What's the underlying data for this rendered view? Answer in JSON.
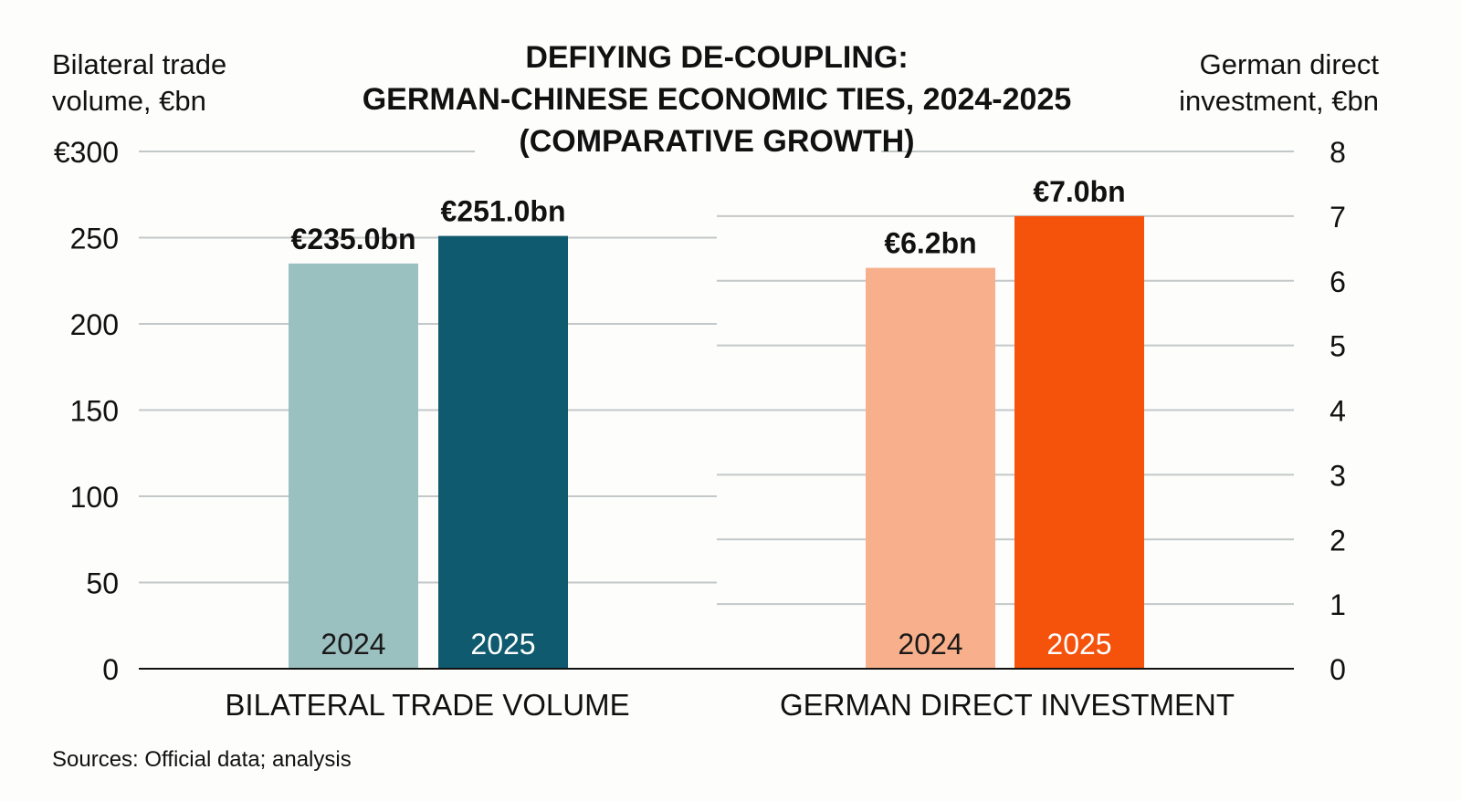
{
  "chart_data": {
    "type": "bar",
    "title_lines": [
      "DEFIYING DE-COUPLING:",
      "GERMAN-CHINESE ECONOMIC TIES, 2024-2025",
      "(COMPARATIVE GROWTH)"
    ],
    "source": "Sources: Official data; analysis",
    "grid": true,
    "panels": [
      {
        "category": "BILATERAL TRADE VOLUME",
        "axis_side": "left",
        "ylabel_lines": [
          "Bilateral trade",
          "volume, €bn"
        ],
        "ylim": [
          0,
          300
        ],
        "ticks": [
          0,
          50,
          100,
          150,
          200,
          250,
          300
        ],
        "tick_labels": [
          "0",
          "50",
          "100",
          "150",
          "200",
          "250",
          "€300"
        ],
        "bars": [
          {
            "year": "2024",
            "value": 235.0,
            "label": "€235.0bn",
            "color": "#9bc0c0",
            "year_color": "#1a1a1a"
          },
          {
            "year": "2025",
            "value": 251.0,
            "label": "€251.0bn",
            "color": "#0f5a6e",
            "year_color": "#ffffff"
          }
        ]
      },
      {
        "category": "GERMAN DIRECT INVESTMENT",
        "axis_side": "right",
        "ylabel_lines": [
          "German direct",
          "investment, €bn"
        ],
        "ylim": [
          0,
          8
        ],
        "ticks": [
          0,
          1,
          2,
          3,
          4,
          5,
          6,
          7,
          8
        ],
        "tick_labels": [
          "0",
          "1",
          "2",
          "3",
          "4",
          "5",
          "6",
          "7",
          "8"
        ],
        "bars": [
          {
            "year": "2024",
            "value": 6.2,
            "label": "€6.2bn",
            "color": "#f8b08c",
            "year_color": "#1a1a1a"
          },
          {
            "year": "2025",
            "value": 7.0,
            "label": "€7.0bn",
            "color": "#f5520c",
            "year_color": "#ffffff"
          }
        ]
      }
    ]
  }
}
